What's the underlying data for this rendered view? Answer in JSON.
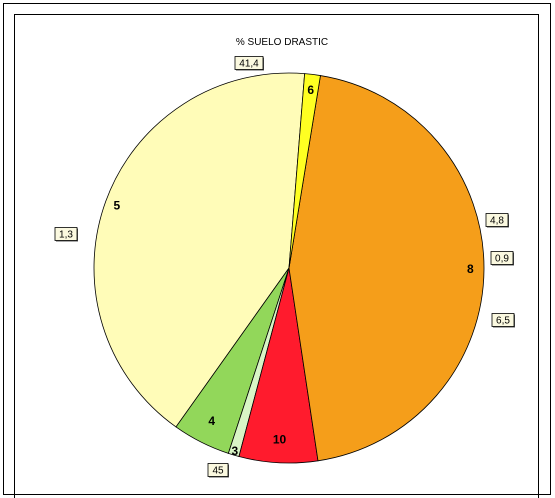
{
  "chart_data": {
    "type": "pie",
    "title": "% SUELO DRASTIC",
    "slices": [
      {
        "label": "5",
        "value": 41.4,
        "value_text": "41,4",
        "color": "#fffcb8"
      },
      {
        "label": "4",
        "value": 4.8,
        "value_text": "4,8",
        "color": "#92d75a"
      },
      {
        "label": "3",
        "value": 0.9,
        "value_text": "0,9",
        "color": "#d9f5c6"
      },
      {
        "label": "10",
        "value": 6.5,
        "value_text": "6,5",
        "color": "#ff1b2d"
      },
      {
        "label": "8",
        "value": 45,
        "value_text": "45",
        "color": "#f59e1a"
      },
      {
        "label": "6",
        "value": 1.3,
        "value_text": "1,3",
        "color": "#ffff22"
      }
    ]
  }
}
